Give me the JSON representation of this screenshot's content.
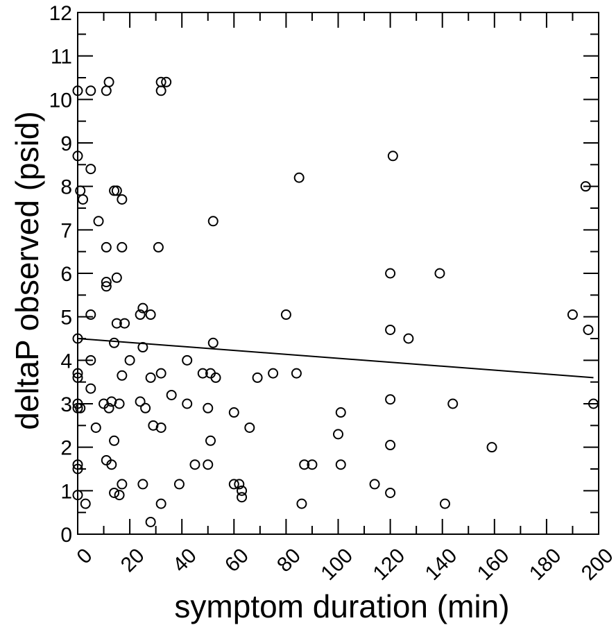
{
  "chart_data": {
    "type": "scatter",
    "xlabel": "symptom duration (min)",
    "ylabel": "deltaP observed (psid)",
    "xlim": [
      0,
      200
    ],
    "ylim": [
      0,
      12
    ],
    "xticks": [
      "0",
      "20",
      "40",
      "60",
      "80",
      "100",
      "120",
      "140",
      "160",
      "180",
      "200"
    ],
    "yticks": [
      "0",
      "1",
      "2",
      "3",
      "4",
      "5",
      "6",
      "7",
      "8",
      "9",
      "10",
      "11",
      "12"
    ],
    "grid": false,
    "marker": "open-circle",
    "trendline": {
      "x": [
        0,
        198
      ],
      "y": [
        4.5,
        3.6
      ]
    },
    "points": [
      [
        0,
        10.2
      ],
      [
        5,
        10.2
      ],
      [
        11,
        10.2
      ],
      [
        12,
        10.4
      ],
      [
        32,
        10.4
      ],
      [
        32,
        10.2
      ],
      [
        34,
        10.4
      ],
      [
        0,
        8.7
      ],
      [
        1,
        7.9
      ],
      [
        2,
        7.7
      ],
      [
        5,
        8.4
      ],
      [
        8,
        7.2
      ],
      [
        14,
        7.9
      ],
      [
        15,
        7.9
      ],
      [
        17,
        7.7
      ],
      [
        11,
        6.6
      ],
      [
        17,
        6.6
      ],
      [
        31,
        6.6
      ],
      [
        11,
        5.8
      ],
      [
        11,
        5.7
      ],
      [
        15,
        5.9
      ],
      [
        5,
        5.05
      ],
      [
        0,
        4.5
      ],
      [
        14,
        4.4
      ],
      [
        15,
        4.85
      ],
      [
        18,
        4.85
      ],
      [
        24,
        5.05
      ],
      [
        25,
        5.2
      ],
      [
        28,
        5.05
      ],
      [
        25,
        4.3
      ],
      [
        0,
        3.7
      ],
      [
        0,
        3.6
      ],
      [
        5,
        4.0
      ],
      [
        5,
        3.35
      ],
      [
        17,
        3.65
      ],
      [
        20,
        4.0
      ],
      [
        28,
        3.6
      ],
      [
        32,
        3.7
      ],
      [
        42,
        4.0
      ],
      [
        0,
        3.0
      ],
      [
        0,
        2.9
      ],
      [
        1,
        2.9
      ],
      [
        10,
        3.0
      ],
      [
        13,
        3.05
      ],
      [
        12,
        2.9
      ],
      [
        16,
        3.0
      ],
      [
        24,
        3.05
      ],
      [
        26,
        2.9
      ],
      [
        36,
        3.2
      ],
      [
        42,
        3.0
      ],
      [
        48,
        3.7
      ],
      [
        51,
        3.7
      ],
      [
        52,
        4.4
      ],
      [
        53,
        3.6
      ],
      [
        50,
        2.9
      ],
      [
        60,
        2.8
      ],
      [
        69,
        3.6
      ],
      [
        75,
        3.7
      ],
      [
        80,
        5.05
      ],
      [
        84,
        3.7
      ],
      [
        85,
        8.2
      ],
      [
        52,
        7.2
      ],
      [
        7,
        2.45
      ],
      [
        14,
        2.15
      ],
      [
        29,
        2.5
      ],
      [
        32,
        2.45
      ],
      [
        51,
        2.15
      ],
      [
        66,
        2.45
      ],
      [
        0,
        1.6
      ],
      [
        0,
        1.5
      ],
      [
        11,
        1.7
      ],
      [
        13,
        1.6
      ],
      [
        17,
        1.15
      ],
      [
        25,
        1.15
      ],
      [
        39,
        1.15
      ],
      [
        45,
        1.6
      ],
      [
        50,
        1.6
      ],
      [
        60,
        1.15
      ],
      [
        62,
        1.15
      ],
      [
        63,
        1.0
      ],
      [
        63,
        0.85
      ],
      [
        87,
        1.6
      ],
      [
        90,
        1.6
      ],
      [
        0,
        0.9
      ],
      [
        3,
        0.7
      ],
      [
        14,
        0.95
      ],
      [
        16,
        0.9
      ],
      [
        28,
        0.28
      ],
      [
        32,
        0.7
      ],
      [
        86,
        0.7
      ],
      [
        100,
        2.3
      ],
      [
        101,
        2.8
      ],
      [
        101,
        1.6
      ],
      [
        114,
        1.15
      ],
      [
        120,
        0.95
      ],
      [
        120,
        2.05
      ],
      [
        120,
        3.1
      ],
      [
        120,
        4.7
      ],
      [
        120,
        6.0
      ],
      [
        121,
        8.7
      ],
      [
        127,
        4.5
      ],
      [
        139,
        6.0
      ],
      [
        141,
        0.7
      ],
      [
        144,
        3.0
      ],
      [
        159,
        2.0
      ],
      [
        190,
        5.05
      ],
      [
        195,
        8.0
      ],
      [
        196,
        4.7
      ],
      [
        198,
        3.0
      ]
    ]
  }
}
